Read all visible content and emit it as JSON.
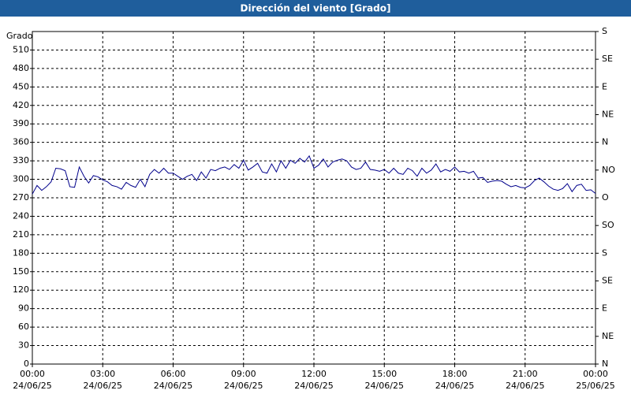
{
  "chart_data": {
    "type": "line",
    "title": "Dirección del viento [Grado]",
    "y_label": "Grado",
    "x": [
      0,
      0.2,
      0.4,
      0.6,
      0.8,
      1,
      1.2,
      1.4,
      1.6,
      1.8,
      2,
      2.2,
      2.4,
      2.6,
      2.8,
      3,
      3.2,
      3.4,
      3.6,
      3.8,
      4,
      4.2,
      4.4,
      4.6,
      4.8,
      5,
      5.2,
      5.4,
      5.6,
      5.8,
      6,
      6.2,
      6.4,
      6.6,
      6.8,
      7,
      7.2,
      7.4,
      7.6,
      7.8,
      8,
      8.2,
      8.4,
      8.6,
      8.8,
      9,
      9.2,
      9.4,
      9.6,
      9.8,
      10,
      10.2,
      10.4,
      10.6,
      10.8,
      11,
      11.2,
      11.4,
      11.6,
      11.8,
      12,
      12.2,
      12.4,
      12.6,
      12.8,
      13,
      13.2,
      13.4,
      13.6,
      13.8,
      14,
      14.2,
      14.4,
      14.6,
      14.8,
      15,
      15.2,
      15.4,
      15.6,
      15.8,
      16,
      16.2,
      16.4,
      16.6,
      16.8,
      17,
      17.2,
      17.4,
      17.6,
      17.8,
      18,
      18.2,
      18.4,
      18.6,
      18.8,
      19,
      19.2,
      19.4,
      19.6,
      19.8,
      20,
      20.2,
      20.4,
      20.6,
      20.8,
      21,
      21.2,
      21.4,
      21.6,
      21.8,
      22,
      22.2,
      22.4,
      22.6,
      22.8,
      23,
      23.2,
      23.4,
      23.6,
      23.8,
      24
    ],
    "series": [
      {
        "color": "#00008b",
        "values": [
          276,
          290,
          282,
          288,
          296,
          318,
          317,
          314,
          288,
          287,
          320,
          305,
          294,
          306,
          304,
          299,
          296,
          290,
          288,
          284,
          295,
          290,
          287,
          300,
          288,
          308,
          316,
          310,
          318,
          310,
          310,
          305,
          300,
          305,
          308,
          298,
          312,
          302,
          316,
          314,
          318,
          320,
          316,
          324,
          318,
          331,
          315,
          320,
          326,
          312,
          310,
          325,
          312,
          330,
          318,
          331,
          326,
          334,
          328,
          338,
          318,
          323,
          333,
          320,
          328,
          331,
          333,
          330,
          320,
          316,
          318,
          328,
          316,
          315,
          313,
          316,
          310,
          318,
          310,
          308,
          318,
          314,
          305,
          318,
          310,
          315,
          325,
          312,
          316,
          313,
          320,
          312,
          313,
          310,
          313,
          302,
          303,
          295,
          297,
          298,
          297,
          292,
          288,
          290,
          287,
          286,
          290,
          298,
          302,
          296,
          289,
          284,
          282,
          285,
          293,
          280,
          290,
          292,
          282,
          283,
          277
        ]
      }
    ],
    "xlim": [
      0,
      24
    ],
    "xticks": [
      {
        "value": 0,
        "label": "00:00\n24/06/25"
      },
      {
        "value": 3,
        "label": "03:00\n24/06/25"
      },
      {
        "value": 6,
        "label": "06:00\n24/06/25"
      },
      {
        "value": 9,
        "label": "09:00\n24/06/25"
      },
      {
        "value": 12,
        "label": "12:00\n24/06/25"
      },
      {
        "value": 15,
        "label": "15:00\n24/06/25"
      },
      {
        "value": 18,
        "label": "18:00\n24/06/25"
      },
      {
        "value": 21,
        "label": "21:00\n24/06/25"
      },
      {
        "value": 24,
        "label": "00:00\n25/06/25"
      }
    ],
    "ylim": [
      0,
      540
    ],
    "yticks": [
      0,
      30,
      60,
      90,
      120,
      150,
      180,
      210,
      240,
      270,
      300,
      330,
      360,
      390,
      420,
      450,
      480,
      510
    ],
    "y2lim": [
      0,
      540
    ],
    "y2ticks": [
      {
        "value": 0,
        "label": "N"
      },
      {
        "value": 45,
        "label": "NE"
      },
      {
        "value": 90,
        "label": "E"
      },
      {
        "value": 135,
        "label": "SE"
      },
      {
        "value": 180,
        "label": "S"
      },
      {
        "value": 225,
        "label": "SO"
      },
      {
        "value": 270,
        "label": "O"
      },
      {
        "value": 315,
        "label": "NO"
      },
      {
        "value": 360,
        "label": "N"
      },
      {
        "value": 405,
        "label": "NE"
      },
      {
        "value": 450,
        "label": "E"
      },
      {
        "value": 495,
        "label": "SE"
      },
      {
        "value": 540,
        "label": "S"
      }
    ],
    "grid": true
  }
}
